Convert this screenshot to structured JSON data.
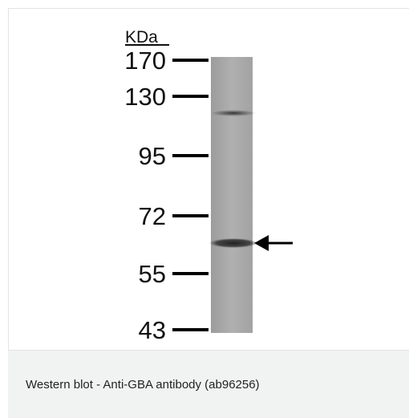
{
  "figure": {
    "unit_label": "KDa",
    "markers": [
      170,
      130,
      95,
      72,
      55,
      43
    ]
  },
  "caption": "Western blot - Anti-GBA antibody (ab96256)"
}
